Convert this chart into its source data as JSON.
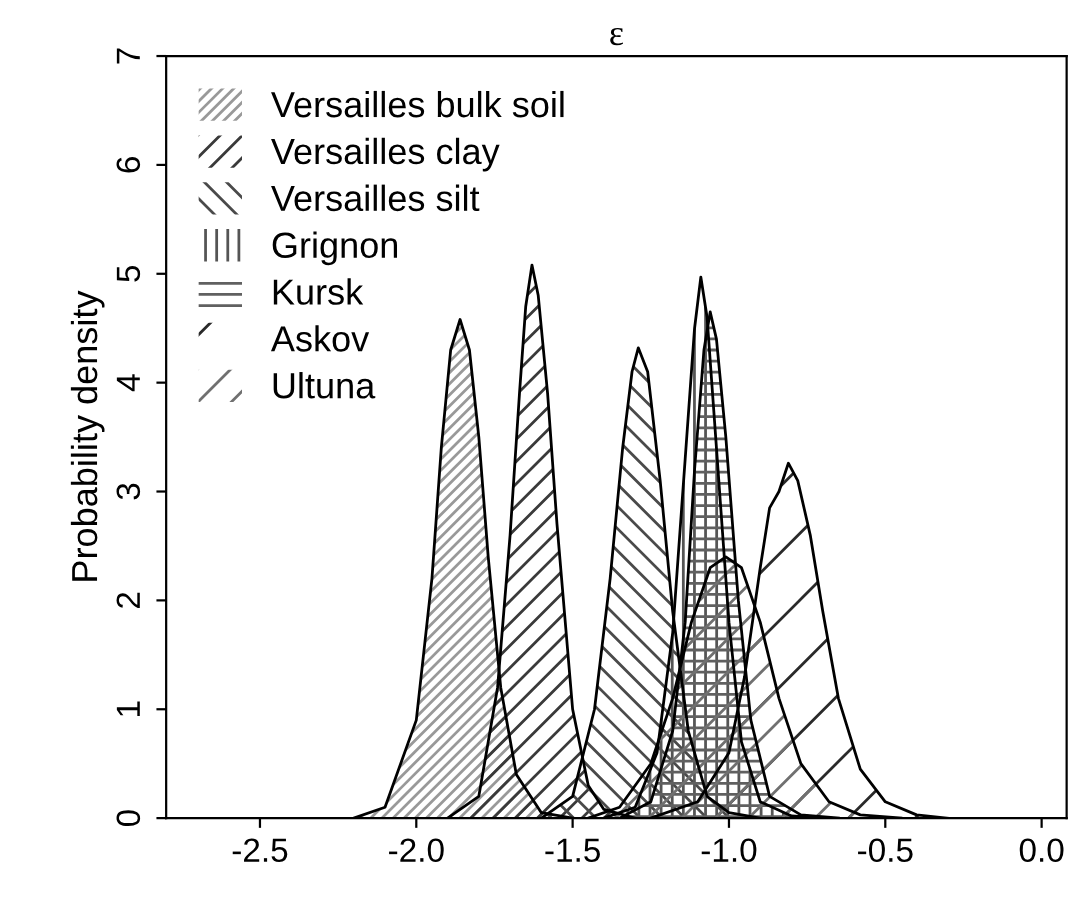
{
  "chart_data": {
    "type": "area",
    "title": "ε",
    "ylabel": "Probability density",
    "xlim": [
      -2.8,
      0.08
    ],
    "ylim": [
      0,
      7
    ],
    "xticks": [
      -2.5,
      {
        "value": -2.0,
        "label": "-2.0"
      },
      -1.5,
      {
        "value": -1.0,
        "label": "-1.0"
      },
      -0.5,
      {
        "value": 0.0,
        "label": "0.0"
      }
    ],
    "yticks": [
      0,
      1,
      2,
      3,
      4,
      5,
      6,
      7
    ],
    "grid": false,
    "legend": "top left",
    "series": [
      {
        "name": "Versailles bulk soil",
        "color": "#999999",
        "x": [
          -2.2,
          -2.1,
          -2.0,
          -1.95,
          -1.92,
          -1.89,
          -1.86,
          -1.83,
          -1.8,
          -1.77,
          -1.73,
          -1.68,
          -1.6,
          -1.5
        ],
        "values": [
          0,
          0.1,
          0.9,
          2.2,
          3.4,
          4.3,
          4.58,
          4.3,
          3.5,
          2.4,
          1.2,
          0.4,
          0.05,
          0
        ]
      },
      {
        "name": "Versailles clay",
        "color": "#3a3a3a",
        "x": [
          -1.9,
          -1.8,
          -1.74,
          -1.7,
          -1.67,
          -1.65,
          -1.63,
          -1.61,
          -1.58,
          -1.55,
          -1.5,
          -1.45,
          -1.4,
          -1.3
        ],
        "values": [
          0,
          0.2,
          1.2,
          2.6,
          3.9,
          4.7,
          5.08,
          4.8,
          3.9,
          2.7,
          1.0,
          0.3,
          0.08,
          0
        ]
      },
      {
        "name": "Versailles silt",
        "color": "#4a4a4a",
        "x": [
          -1.6,
          -1.5,
          -1.43,
          -1.38,
          -1.34,
          -1.31,
          -1.29,
          -1.26,
          -1.22,
          -1.18,
          -1.13,
          -1.07,
          -1.0,
          -0.9
        ],
        "values": [
          0,
          0.2,
          1.0,
          2.2,
          3.4,
          4.1,
          4.32,
          4.1,
          3.1,
          1.9,
          0.8,
          0.2,
          0.05,
          0
        ]
      },
      {
        "name": "Grignon",
        "color": "#555555",
        "x": [
          -1.4,
          -1.3,
          -1.23,
          -1.18,
          -1.14,
          -1.11,
          -1.09,
          -1.07,
          -1.04,
          -1.0,
          -0.96,
          -0.9,
          -0.8,
          -0.7
        ],
        "values": [
          0,
          0.1,
          0.6,
          1.7,
          3.3,
          4.5,
          4.97,
          4.6,
          3.4,
          1.8,
          0.7,
          0.15,
          0.02,
          0
        ]
      },
      {
        "name": "Kursk",
        "color": "#606060",
        "x": [
          -1.35,
          -1.25,
          -1.18,
          -1.14,
          -1.11,
          -1.08,
          -1.06,
          -1.04,
          -1.01,
          -0.97,
          -0.93,
          -0.87,
          -0.77,
          -0.65
        ],
        "values": [
          0,
          0.15,
          0.8,
          1.8,
          3.2,
          4.3,
          4.65,
          4.4,
          3.5,
          2.0,
          0.9,
          0.2,
          0.03,
          0
        ]
      },
      {
        "name": "Askov",
        "color": "#2a2a2a",
        "x": [
          -1.25,
          -1.1,
          -1.0,
          -0.95,
          -0.9,
          -0.87,
          -0.84,
          -0.81,
          -0.78,
          -0.74,
          -0.7,
          -0.65,
          -0.58,
          -0.5,
          -0.4,
          -0.3
        ],
        "values": [
          0,
          0.15,
          0.6,
          1.3,
          2.3,
          2.85,
          3.0,
          3.26,
          3.1,
          2.6,
          1.9,
          1.1,
          0.45,
          0.15,
          0.03,
          0
        ]
      },
      {
        "name": "Ultuna",
        "color": "#707070",
        "x": [
          -1.45,
          -1.35,
          -1.25,
          -1.18,
          -1.12,
          -1.06,
          -1.01,
          -0.96,
          -0.9,
          -0.84,
          -0.77,
          -0.68,
          -0.58,
          -0.45
        ],
        "values": [
          0,
          0.1,
          0.5,
          1.1,
          1.8,
          2.3,
          2.4,
          2.3,
          1.8,
          1.1,
          0.5,
          0.15,
          0.03,
          0
        ]
      }
    ]
  }
}
